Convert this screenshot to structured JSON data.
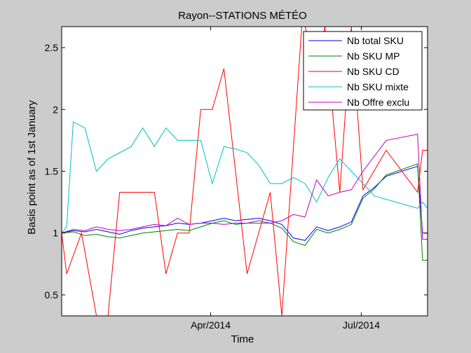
{
  "chart_data": {
    "type": "line",
    "title": "Rayon--STATIONS MÉTÉO",
    "xlabel": "Time",
    "ylabel": "Basis point as of 1st January",
    "x": [
      "2014-01-01",
      "2014-01-08",
      "2014-01-15",
      "2014-01-22",
      "2014-01-29",
      "2014-02-05",
      "2014-02-12",
      "2014-02-19",
      "2014-02-26",
      "2014-03-05",
      "2014-03-12",
      "2014-03-19",
      "2014-03-26",
      "2014-04-02",
      "2014-04-09",
      "2014-04-16",
      "2014-04-23",
      "2014-04-30",
      "2014-05-07",
      "2014-05-14",
      "2014-05-21",
      "2014-05-28",
      "2014-06-04",
      "2014-06-11",
      "2014-06-18",
      "2014-06-25",
      "2014-07-02",
      "2014-07-09",
      "2014-07-16",
      "2014-07-23",
      "2014-07-30",
      "2014-08-06"
    ],
    "x_range": [
      "2014-01-01",
      "2014-08-10"
    ],
    "xticks": [
      {
        "date": "2014-04-01",
        "label": "Apr/2014"
      },
      {
        "date": "2014-07-01",
        "label": "Jul/2014"
      }
    ],
    "ylim": [
      0.33,
      2.67
    ],
    "yticks": [
      {
        "value": 0.5,
        "label": "0.5"
      },
      {
        "value": 1,
        "label": "1"
      },
      {
        "value": 1.5,
        "label": "1.5"
      },
      {
        "value": 2,
        "label": "2"
      },
      {
        "value": 2.5,
        "label": "2.5"
      }
    ],
    "grid": false,
    "legend_position": "top-right",
    "series": [
      {
        "name": "Nb total SKU",
        "color": "#0000ff",
        "points": [
          [
            "2014-01-01",
            1.0
          ],
          [
            "2014-01-08",
            1.02
          ],
          [
            "2014-01-15",
            1.01
          ],
          [
            "2014-01-22",
            1.03
          ],
          [
            "2014-01-29",
            1.01
          ],
          [
            "2014-02-05",
            0.99
          ],
          [
            "2014-02-12",
            1.02
          ],
          [
            "2014-02-19",
            1.04
          ],
          [
            "2014-02-26",
            1.05
          ],
          [
            "2014-03-05",
            1.06
          ],
          [
            "2014-03-12",
            1.08
          ],
          [
            "2014-03-19",
            1.07
          ],
          [
            "2014-03-26",
            1.08
          ],
          [
            "2014-04-02",
            1.1
          ],
          [
            "2014-04-09",
            1.12
          ],
          [
            "2014-04-16",
            1.1
          ],
          [
            "2014-04-23",
            1.11
          ],
          [
            "2014-04-30",
            1.12
          ],
          [
            "2014-05-07",
            1.1
          ],
          [
            "2014-05-14",
            1.07
          ],
          [
            "2014-05-21",
            0.96
          ],
          [
            "2014-05-28",
            0.94
          ],
          [
            "2014-06-04",
            1.05
          ],
          [
            "2014-06-11",
            1.02
          ],
          [
            "2014-06-18",
            1.05
          ],
          [
            "2014-06-25",
            1.09
          ],
          [
            "2014-07-02",
            1.3
          ],
          [
            "2014-07-09",
            1.37
          ],
          [
            "2014-07-16",
            1.46
          ],
          [
            "2014-08-04",
            1.54
          ],
          [
            "2014-08-07",
            1.0
          ],
          [
            "2014-08-10",
            1.0
          ]
        ]
      },
      {
        "name": "Nb SKU MP",
        "color": "#007f00",
        "points": [
          [
            "2014-01-01",
            1.0
          ],
          [
            "2014-01-08",
            1.01
          ],
          [
            "2014-01-15",
            0.98
          ],
          [
            "2014-01-22",
            0.99
          ],
          [
            "2014-01-29",
            0.97
          ],
          [
            "2014-02-05",
            0.96
          ],
          [
            "2014-02-12",
            0.98
          ],
          [
            "2014-02-19",
            1.0
          ],
          [
            "2014-02-26",
            1.01
          ],
          [
            "2014-03-05",
            1.02
          ],
          [
            "2014-03-12",
            1.03
          ],
          [
            "2014-03-19",
            1.02
          ],
          [
            "2014-03-26",
            1.05
          ],
          [
            "2014-04-02",
            1.08
          ],
          [
            "2014-04-09",
            1.1
          ],
          [
            "2014-04-16",
            1.07
          ],
          [
            "2014-04-23",
            1.08
          ],
          [
            "2014-04-30",
            1.08
          ],
          [
            "2014-05-07",
            1.08
          ],
          [
            "2014-05-14",
            1.04
          ],
          [
            "2014-05-21",
            0.93
          ],
          [
            "2014-05-28",
            0.9
          ],
          [
            "2014-06-04",
            1.03
          ],
          [
            "2014-06-11",
            1.0
          ],
          [
            "2014-06-18",
            1.03
          ],
          [
            "2014-06-25",
            1.07
          ],
          [
            "2014-07-02",
            1.28
          ],
          [
            "2014-07-09",
            1.36
          ],
          [
            "2014-07-16",
            1.47
          ],
          [
            "2014-08-04",
            1.56
          ],
          [
            "2014-08-07",
            0.78
          ],
          [
            "2014-08-10",
            0.78
          ]
        ]
      },
      {
        "name": "Nb SKU CD",
        "color": "#ff0000",
        "points": [
          [
            "2014-01-01",
            1.0
          ],
          [
            "2014-01-04",
            0.67
          ],
          [
            "2014-01-13",
            1.0
          ],
          [
            "2014-01-22",
            0.33
          ],
          [
            "2014-01-29",
            0.33
          ],
          [
            "2014-02-05",
            1.33
          ],
          [
            "2014-02-12",
            1.33
          ],
          [
            "2014-02-26",
            1.33
          ],
          [
            "2014-03-05",
            0.67
          ],
          [
            "2014-03-12",
            1.0
          ],
          [
            "2014-03-19",
            1.0
          ],
          [
            "2014-03-26",
            2.0
          ],
          [
            "2014-04-02",
            2.0
          ],
          [
            "2014-04-09",
            2.33
          ],
          [
            "2014-04-23",
            0.67
          ],
          [
            "2014-05-07",
            1.33
          ],
          [
            "2014-05-14",
            0.33
          ],
          [
            "2014-05-26",
            2.67
          ],
          [
            "2014-05-28",
            2.67
          ],
          [
            "2014-06-04",
            2.33
          ],
          [
            "2014-06-09",
            2.67
          ],
          [
            "2014-06-18",
            1.33
          ],
          [
            "2014-06-25",
            2.67
          ],
          [
            "2014-07-02",
            1.35
          ],
          [
            "2014-07-16",
            1.67
          ],
          [
            "2014-08-04",
            1.33
          ],
          [
            "2014-08-07",
            1.67
          ],
          [
            "2014-08-10",
            1.67
          ]
        ]
      },
      {
        "name": "Nb SKU mixte",
        "color": "#00bfbf",
        "points": [
          [
            "2014-01-01",
            1.0
          ],
          [
            "2014-01-04",
            1.05
          ],
          [
            "2014-01-08",
            1.9
          ],
          [
            "2014-01-15",
            1.85
          ],
          [
            "2014-01-22",
            1.5
          ],
          [
            "2014-01-29",
            1.6
          ],
          [
            "2014-02-05",
            1.65
          ],
          [
            "2014-02-12",
            1.7
          ],
          [
            "2014-02-19",
            1.85
          ],
          [
            "2014-02-26",
            1.7
          ],
          [
            "2014-03-05",
            1.85
          ],
          [
            "2014-03-12",
            1.75
          ],
          [
            "2014-03-19",
            1.75
          ],
          [
            "2014-03-26",
            1.75
          ],
          [
            "2014-04-02",
            1.4
          ],
          [
            "2014-04-09",
            1.7
          ],
          [
            "2014-04-16",
            1.68
          ],
          [
            "2014-04-23",
            1.65
          ],
          [
            "2014-04-30",
            1.55
          ],
          [
            "2014-05-07",
            1.4
          ],
          [
            "2014-05-14",
            1.4
          ],
          [
            "2014-05-21",
            1.45
          ],
          [
            "2014-05-28",
            1.4
          ],
          [
            "2014-06-04",
            1.25
          ],
          [
            "2014-06-11",
            1.45
          ],
          [
            "2014-06-18",
            1.6
          ],
          [
            "2014-06-25",
            1.5
          ],
          [
            "2014-07-02",
            1.4
          ],
          [
            "2014-07-09",
            1.3
          ],
          [
            "2014-08-04",
            1.2
          ],
          [
            "2014-08-07",
            1.25
          ],
          [
            "2014-08-10",
            1.2
          ]
        ]
      },
      {
        "name": "Nb Offre exclu",
        "color": "#bf00bf",
        "points": [
          [
            "2014-01-01",
            1.0
          ],
          [
            "2014-01-08",
            1.03
          ],
          [
            "2014-01-15",
            1.02
          ],
          [
            "2014-01-22",
            1.05
          ],
          [
            "2014-01-29",
            1.03
          ],
          [
            "2014-02-05",
            1.02
          ],
          [
            "2014-02-12",
            1.03
          ],
          [
            "2014-02-19",
            1.05
          ],
          [
            "2014-02-26",
            1.07
          ],
          [
            "2014-03-05",
            1.06
          ],
          [
            "2014-03-12",
            1.12
          ],
          [
            "2014-03-19",
            1.07
          ],
          [
            "2014-03-26",
            1.08
          ],
          [
            "2014-04-02",
            1.08
          ],
          [
            "2014-04-09",
            1.07
          ],
          [
            "2014-04-16",
            1.08
          ],
          [
            "2014-04-23",
            1.08
          ],
          [
            "2014-04-30",
            1.1
          ],
          [
            "2014-05-07",
            1.08
          ],
          [
            "2014-05-14",
            1.1
          ],
          [
            "2014-05-21",
            1.15
          ],
          [
            "2014-05-28",
            1.13
          ],
          [
            "2014-06-04",
            1.43
          ],
          [
            "2014-06-11",
            1.3
          ],
          [
            "2014-06-18",
            1.33
          ],
          [
            "2014-06-25",
            1.35
          ],
          [
            "2014-07-02",
            1.5
          ],
          [
            "2014-07-16",
            1.75
          ],
          [
            "2014-08-04",
            1.8
          ],
          [
            "2014-08-07",
            0.95
          ],
          [
            "2014-08-10",
            0.95
          ]
        ]
      }
    ]
  }
}
